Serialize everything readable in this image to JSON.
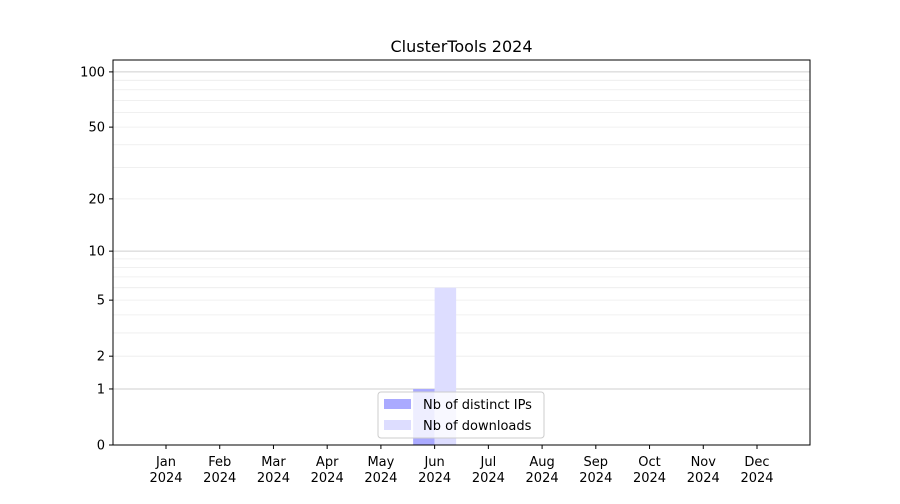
{
  "chart_data": {
    "type": "bar",
    "title": "ClusterTools 2024",
    "xlabel": "",
    "ylabel": "",
    "yscale": "log(1+y)",
    "ylim": [
      0,
      116
    ],
    "yticks": [
      0,
      1,
      2,
      5,
      10,
      20,
      50,
      100
    ],
    "grid": true,
    "legend_position": "bottom-center",
    "categories": [
      "Jan\n2024",
      "Feb\n2024",
      "Mar\n2024",
      "Apr\n2024",
      "May\n2024",
      "Jun\n2024",
      "Jul\n2024",
      "Aug\n2024",
      "Sep\n2024",
      "Oct\n2024",
      "Nov\n2024",
      "Dec\n2024"
    ],
    "series": [
      {
        "name": "Nb of distinct IPs",
        "color": "#aaaaff",
        "values": [
          0,
          0,
          0,
          0,
          0,
          1,
          0,
          0,
          0,
          0,
          0,
          0
        ]
      },
      {
        "name": "Nb of downloads",
        "color": "#ddddff",
        "values": [
          0,
          0,
          0,
          0,
          0,
          6,
          0,
          0,
          0,
          0,
          0,
          0
        ]
      }
    ]
  }
}
